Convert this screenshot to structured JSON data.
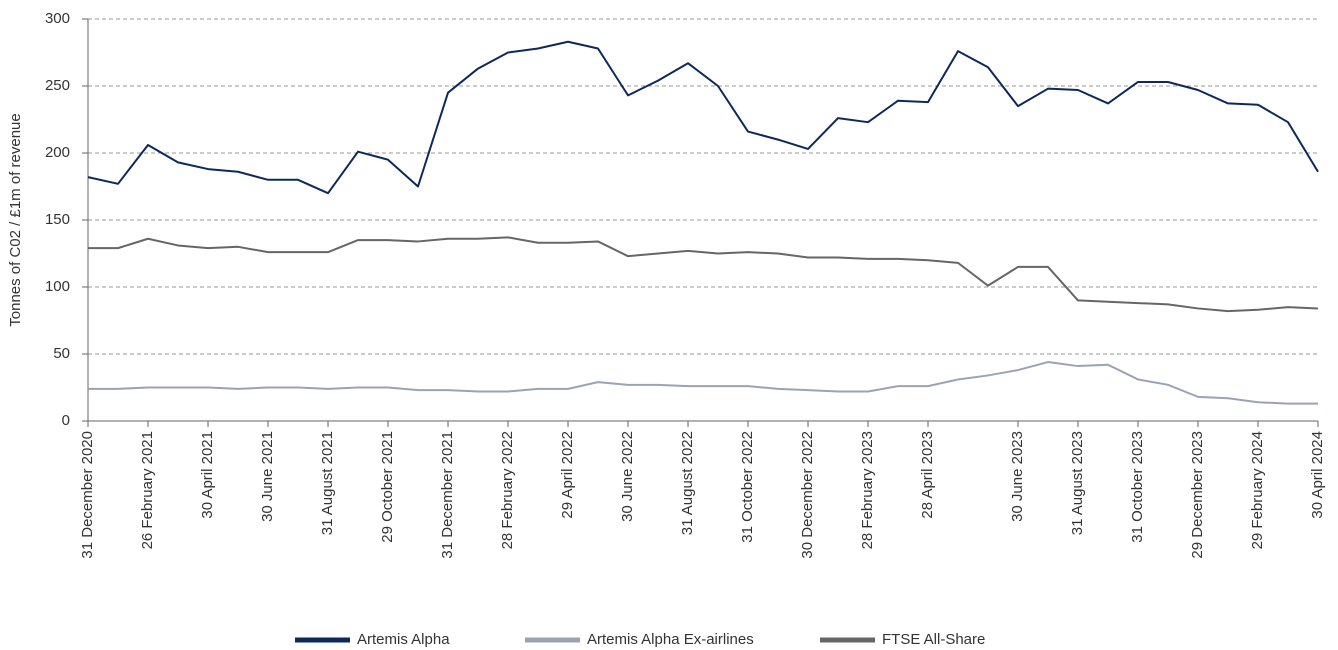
{
  "chart_data": {
    "type": "line",
    "ylabel": "Tonnes of C02 / £1m of revenue",
    "categories": [
      "31 December 2020",
      null,
      "26 February 2021",
      null,
      "30 April 2021",
      null,
      "30 June 2021",
      null,
      "31 August 2021",
      null,
      "29 October 2021",
      null,
      "31 December 2021",
      null,
      "28 February 2022",
      null,
      "29 April 2022",
      null,
      "30 June 2022",
      null,
      "31 August 2022",
      null,
      "31 October 2022",
      null,
      "30 December 2022",
      null,
      "28 February 2023",
      null,
      "28 April 2023",
      null,
      null,
      "30 June 2023",
      null,
      "31 August 2023",
      null,
      "31 October 2023",
      null,
      "29 December 2023",
      null,
      "29 February 2024",
      null,
      "30 April 2024"
    ],
    "series": [
      {
        "name": "Artemis Alpha",
        "color": "#0b2a5b",
        "values": [
          182,
          177,
          206,
          193,
          188,
          186,
          180,
          180,
          170,
          201,
          195,
          175,
          245,
          263,
          275,
          278,
          283,
          278,
          243,
          254,
          267,
          250,
          216,
          210,
          203,
          226,
          223,
          239,
          238,
          276,
          264,
          235,
          248,
          247,
          237,
          253,
          253,
          247,
          237,
          236,
          223,
          186
        ]
      },
      {
        "name": "Artemis Alpha Ex-airlines",
        "color": "#9aa3b5",
        "values": [
          24,
          24,
          25,
          25,
          25,
          24,
          25,
          25,
          24,
          25,
          25,
          23,
          23,
          22,
          22,
          24,
          24,
          29,
          27,
          27,
          26,
          26,
          26,
          24,
          23,
          22,
          22,
          26,
          26,
          31,
          34,
          38,
          44,
          41,
          42,
          31,
          27,
          18,
          17,
          14,
          13,
          13
        ]
      },
      {
        "name": "FTSE All-Share",
        "color": "#666666",
        "values": [
          129,
          129,
          136,
          131,
          129,
          130,
          126,
          126,
          126,
          135,
          135,
          134,
          136,
          136,
          137,
          133,
          133,
          134,
          123,
          125,
          127,
          125,
          126,
          125,
          122,
          122,
          121,
          121,
          120,
          118,
          101,
          115,
          115,
          90,
          89,
          88,
          87,
          84,
          82,
          83,
          85,
          84
        ]
      }
    ],
    "ylim": [
      0,
      300
    ],
    "yticks": [
      0,
      50,
      100,
      150,
      200,
      250,
      300
    ],
    "grid": true,
    "legend": "bottom"
  }
}
